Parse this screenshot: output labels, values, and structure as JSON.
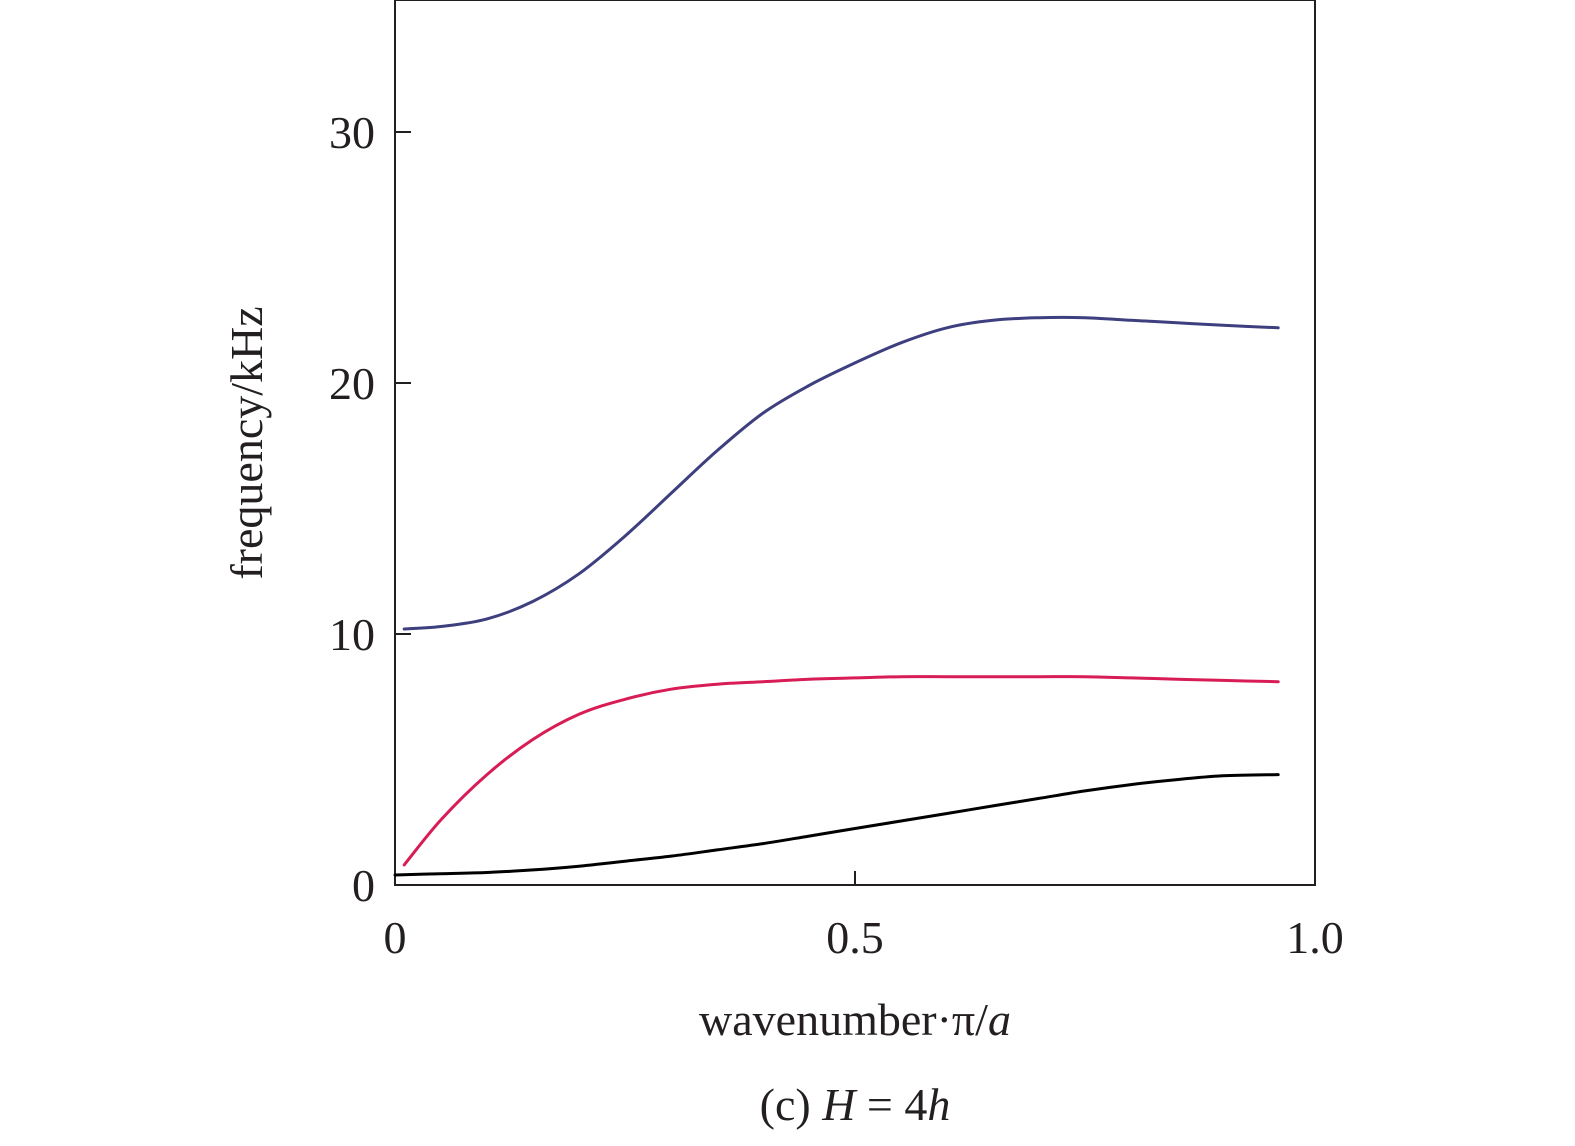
{
  "chart_data": {
    "type": "line",
    "xlabel": "wavenumber·π/a",
    "xlabel_parts": {
      "main": "wavenumber·π/",
      "italic": "a"
    },
    "ylabel": "frequency/kHz",
    "caption": "(c) H = 4h",
    "caption_parts": {
      "prefix": "(c) ",
      "var1": "H",
      "middle": " = 4",
      "var2": "h"
    },
    "xlim": [
      0,
      1.0
    ],
    "ylim": [
      0,
      35
    ],
    "xticks": [
      0,
      0.5,
      1.0
    ],
    "xtick_labels": [
      "0",
      "0.5",
      "1.0"
    ],
    "yticks": [
      0,
      10,
      20,
      30
    ],
    "ytick_labels": [
      "0",
      "10",
      "20",
      "30"
    ],
    "grid": false,
    "series": [
      {
        "color": "#3d3f7e",
        "x": [
          0.01,
          0.05,
          0.1,
          0.15,
          0.2,
          0.25,
          0.3,
          0.35,
          0.4,
          0.45,
          0.5,
          0.55,
          0.6,
          0.65,
          0.7,
          0.75,
          0.8,
          0.85,
          0.9,
          0.96
        ],
        "y": [
          10.2,
          10.3,
          10.6,
          11.3,
          12.4,
          13.9,
          15.6,
          17.3,
          18.8,
          19.9,
          20.8,
          21.6,
          22.2,
          22.5,
          22.6,
          22.6,
          22.5,
          22.4,
          22.3,
          22.2
        ]
      },
      {
        "color": "#d81c55",
        "x": [
          0.01,
          0.05,
          0.1,
          0.15,
          0.2,
          0.25,
          0.3,
          0.35,
          0.4,
          0.45,
          0.5,
          0.55,
          0.6,
          0.65,
          0.7,
          0.75,
          0.8,
          0.85,
          0.9,
          0.96
        ],
        "y": [
          0.8,
          2.6,
          4.4,
          5.8,
          6.8,
          7.4,
          7.8,
          8.0,
          8.1,
          8.2,
          8.25,
          8.3,
          8.3,
          8.3,
          8.3,
          8.3,
          8.25,
          8.2,
          8.15,
          8.1
        ]
      },
      {
        "color": "#000000",
        "x": [
          0.0,
          0.05,
          0.1,
          0.15,
          0.2,
          0.25,
          0.3,
          0.35,
          0.4,
          0.45,
          0.5,
          0.55,
          0.6,
          0.65,
          0.7,
          0.75,
          0.8,
          0.85,
          0.9,
          0.96
        ],
        "y": [
          0.4,
          0.45,
          0.5,
          0.6,
          0.75,
          0.95,
          1.15,
          1.4,
          1.65,
          1.95,
          2.25,
          2.55,
          2.85,
          3.15,
          3.45,
          3.75,
          4.0,
          4.2,
          4.35,
          4.4
        ]
      }
    ]
  }
}
